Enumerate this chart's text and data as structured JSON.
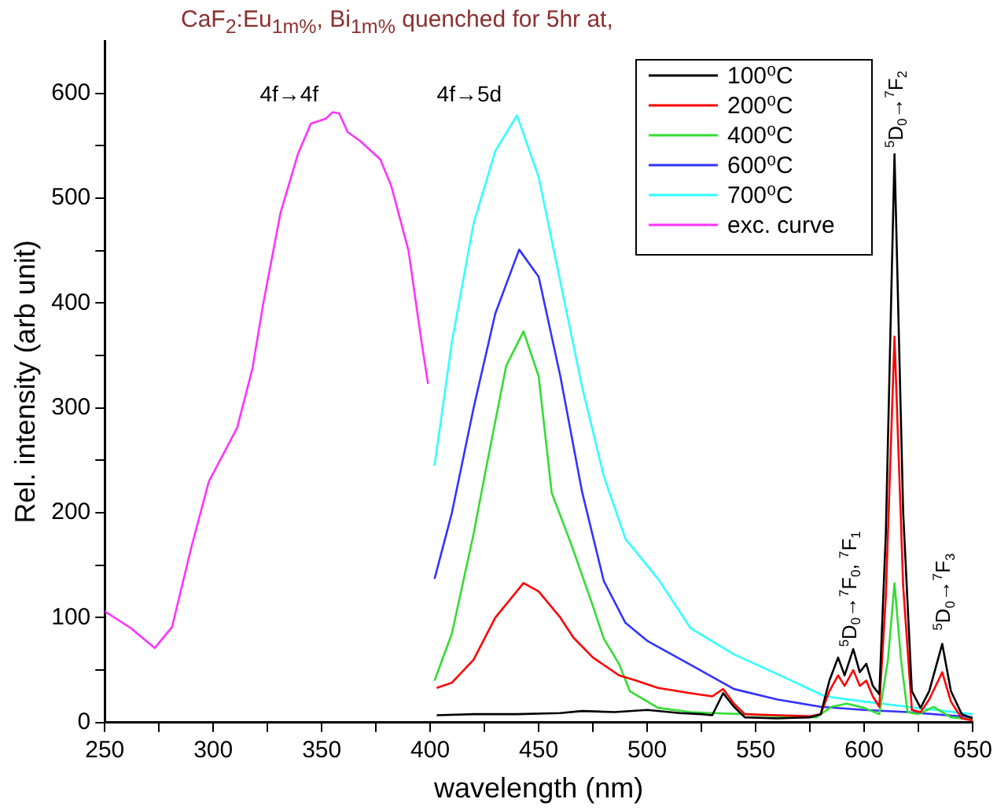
{
  "chart_data": {
    "type": "line",
    "title": "CaF$_{2}$:Eu$_{1m%}$, Bi$_{1m%}$ quenched for 5hr at,",
    "xlabel": "wavelength (nm)",
    "ylabel": "Rel. intensity (arb unit)",
    "xlim": [
      250,
      650
    ],
    "ylim": [
      0,
      650
    ],
    "xticks": [
      250,
      {
        "value": 275,
        "label": null
      },
      300,
      {
        "value": 325,
        "label": null
      },
      350,
      {
        "value": 375,
        "label": null
      },
      400,
      {
        "value": 425,
        "label": null
      },
      450,
      {
        "value": 475,
        "label": null
      },
      500,
      {
        "value": 525,
        "label": null
      },
      550,
      {
        "value": 575,
        "label": null
      },
      600,
      {
        "value": 625,
        "label": null
      },
      650
    ],
    "yticks": [
      0,
      {
        "value": 50,
        "label": null
      },
      100,
      {
        "value": 150,
        "label": null
      },
      200,
      {
        "value": 250,
        "label": null
      },
      300,
      {
        "value": 350,
        "label": null
      },
      400,
      {
        "value": 450,
        "label": null
      },
      500,
      {
        "value": 550,
        "label": null
      },
      600
    ],
    "grid": false,
    "legend": "top right",
    "series": [
      {
        "name": "100⁰C",
        "color": "#000000",
        "x": [
          403,
          420,
          440,
          460,
          470,
          485,
          500,
          515,
          525,
          530,
          535,
          540,
          545,
          560,
          575,
          580,
          584,
          588,
          591,
          595,
          598,
          601,
          604,
          607,
          610,
          614,
          618,
          622,
          626,
          630,
          636,
          640,
          645,
          650
        ],
        "values": [
          7,
          8,
          8,
          9,
          11,
          10,
          12,
          9,
          8,
          7,
          28,
          15,
          5,
          4,
          5,
          8,
          40,
          62,
          45,
          70,
          48,
          56,
          35,
          27,
          180,
          542,
          200,
          30,
          14,
          30,
          75,
          30,
          8,
          4
        ]
      },
      {
        "name": "200⁰C",
        "color": "#ff0000",
        "x": [
          403,
          410,
          420,
          430,
          443,
          450,
          460,
          466,
          475,
          487,
          495,
          505,
          520,
          530,
          535,
          540,
          545,
          560,
          575,
          580,
          584,
          588,
          591,
          595,
          598,
          601,
          604,
          607,
          610,
          614,
          618,
          622,
          626,
          630,
          636,
          640,
          645,
          650
        ],
        "values": [
          33,
          38,
          60,
          100,
          133,
          125,
          100,
          81,
          62,
          45,
          40,
          33,
          28,
          25,
          32,
          18,
          8,
          7,
          6,
          8,
          30,
          45,
          35,
          50,
          35,
          40,
          25,
          15,
          120,
          368,
          130,
          12,
          10,
          22,
          48,
          20,
          4,
          2
        ]
      },
      {
        "name": "400⁰C",
        "color": "#33dd33",
        "x": [
          402,
          410,
          420,
          426,
          435,
          443,
          450,
          456,
          465,
          474,
          480,
          487,
          492,
          505,
          520,
          530,
          545,
          560,
          578,
          585,
          592,
          600,
          607,
          611,
          614,
          617,
          620,
          625,
          632,
          640,
          650
        ],
        "values": [
          40,
          85,
          180,
          245,
          340,
          373,
          330,
          219,
          170,
          117,
          80,
          56,
          30,
          14,
          10,
          9,
          8,
          6,
          5,
          15,
          18,
          14,
          8,
          60,
          133,
          60,
          10,
          8,
          15,
          5,
          3
        ]
      },
      {
        "name": "600⁰C",
        "color": "#3333ff",
        "x": [
          402,
          410,
          420,
          430,
          441,
          450,
          460,
          470,
          480,
          490,
          500,
          520,
          540,
          560,
          580,
          600,
          620,
          650
        ],
        "values": [
          137,
          200,
          300,
          390,
          451,
          425,
          330,
          220,
          135,
          95,
          78,
          55,
          32,
          22,
          15,
          12,
          10,
          5
        ]
      },
      {
        "name": "700⁰C",
        "color": "#33ffff",
        "x": [
          402,
          410,
          420,
          430,
          440,
          450,
          460,
          470,
          480,
          490,
          505,
          520,
          540,
          556,
          582,
          600,
          620,
          650
        ],
        "values": [
          245,
          363,
          476,
          545,
          579,
          520,
          420,
          320,
          235,
          175,
          137,
          90,
          65,
          50,
          25,
          20,
          15,
          8
        ]
      },
      {
        "name": "exc. curve",
        "color": "#ff33ff",
        "x": [
          250,
          262,
          273,
          281,
          290,
          298,
          311,
          318,
          323,
          331,
          339,
          345,
          352,
          355,
          358,
          362,
          368,
          377,
          382,
          390,
          396,
          399
        ],
        "values": [
          106,
          90,
          71,
          91,
          168,
          230,
          281,
          337,
          399,
          486,
          542,
          571,
          576,
          582,
          581,
          563,
          554,
          537,
          512,
          450,
          363,
          323
        ]
      }
    ],
    "annotations": [
      "4f→4f",
      "4f→5d",
      "$^{5}$D$_{0}$→$^{7}$F$_{2}$",
      "$^{5}$D$_{0}$→$^{7}$F$_{0}$, $^{7}$F$_{1}$",
      "$^{5}$D$_{0}$→$^{7}$F$_{3}$"
    ]
  }
}
